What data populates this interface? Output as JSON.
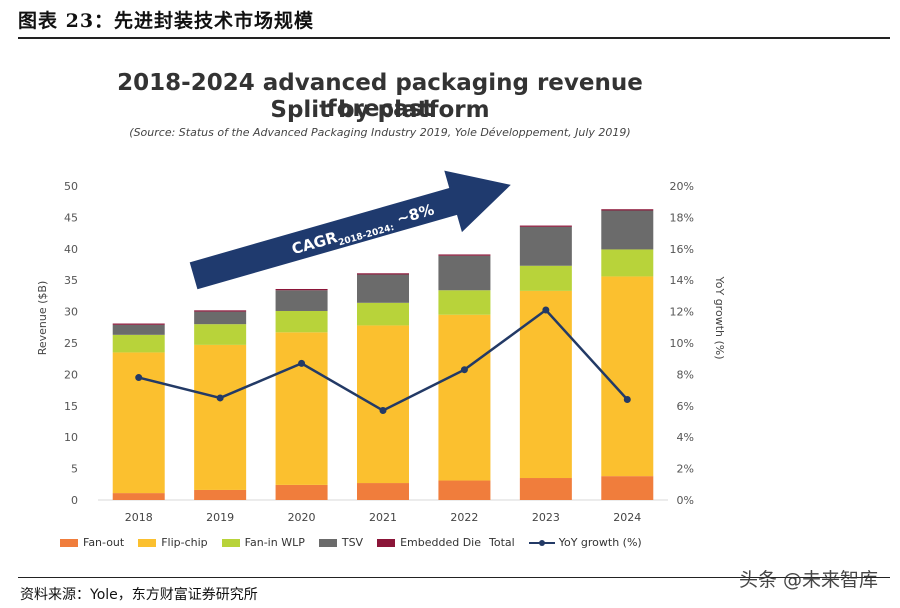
{
  "figure_title": "图表 23：先进封装技术市场规模",
  "footnote": "资料来源：Yole，东方财富证券研究所",
  "watermark": "头条 @未来智库",
  "chart_data": {
    "type": "bar",
    "title": "2018-2024 advanced packaging revenue forecast",
    "subtitle": "Split by platform",
    "source": "(Source: Status of the Advanced Packaging Industry 2019, Yole Développement, July 2019)",
    "categories": [
      "2018",
      "2019",
      "2020",
      "2021",
      "2022",
      "2023",
      "2024"
    ],
    "stacked": true,
    "series": [
      {
        "name": "Fan-out",
        "color": "#f07d3c",
        "values": [
          1.1,
          1.6,
          2.4,
          2.7,
          3.1,
          3.5,
          3.8
        ]
      },
      {
        "name": "Flip-chip",
        "color": "#fbc02f",
        "values": [
          22.4,
          23.1,
          24.3,
          25.1,
          26.4,
          29.8,
          31.8
        ]
      },
      {
        "name": "Fan-in WLP",
        "color": "#b8d33a",
        "values": [
          2.8,
          3.3,
          3.4,
          3.6,
          3.9,
          4.0,
          4.3
        ]
      },
      {
        "name": "TSV",
        "color": "#6b6b6b",
        "values": [
          1.6,
          2.0,
          3.3,
          4.5,
          5.5,
          6.2,
          6.2
        ]
      },
      {
        "name": "Embedded Die",
        "color": "#8b1538",
        "values": [
          0.2,
          0.2,
          0.2,
          0.2,
          0.2,
          0.2,
          0.2
        ]
      }
    ],
    "total_legend_label": "Total",
    "line_series": {
      "name": "YoY growth (%)",
      "color": "#233a66",
      "values": [
        7.8,
        6.5,
        8.7,
        5.7,
        8.3,
        12.1,
        6.4
      ]
    },
    "ylabel": "Revenue ($B)",
    "y2label": "YoY growth (%)",
    "ylim": [
      0,
      50
    ],
    "y2lim": [
      0,
      20
    ],
    "yticks": [
      "0",
      "5",
      "10",
      "15",
      "20",
      "25",
      "30",
      "35",
      "40",
      "45",
      "50"
    ],
    "y2ticks": [
      "0%",
      "2%",
      "4%",
      "6%",
      "8%",
      "10%",
      "12%",
      "14%",
      "16%",
      "18%",
      "20%"
    ],
    "annotation": {
      "text": "CAGR",
      "subscript": "2018-2024",
      "suffix": "~8%"
    }
  }
}
